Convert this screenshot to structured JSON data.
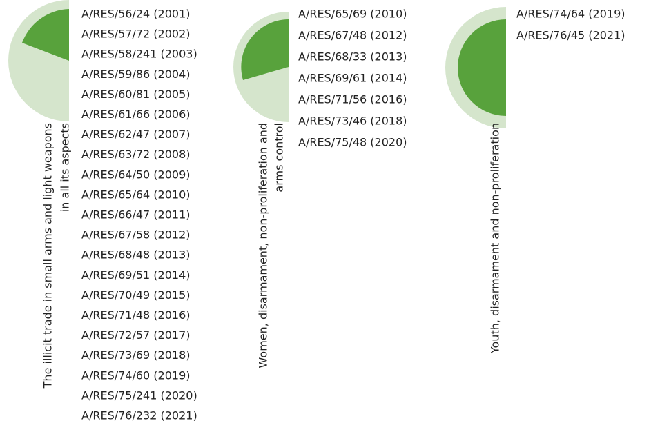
{
  "groups": [
    {
      "label": [
        "The illicit trade in small arms and light weapons",
        "in all its aspects"
      ],
      "resolutions": [
        "A/RES/56/24 (2001)",
        "A/RES/57/72 (2002)",
        "A/RES/58/241 (2003)",
        "A/RES/59/86 (2004)",
        "A/RES/60/81 (2005)",
        "A/RES/61/66 (2006)",
        "A/RES/62/47 (2007)",
        "A/RES/63/72 (2008)",
        "A/RES/64/50 (2009)",
        "A/RES/65/64 (2010)",
        "A/RES/66/47 (2011)",
        "A/RES/67/58 (2012)",
        "A/RES/68/48 (2013)",
        "A/RES/69/51 (2014)",
        "A/RES/70/49 (2015)",
        "A/RES/71/48 (2016)",
        "A/RES/72/57 (2017)",
        "A/RES/73/69 (2018)",
        "A/RES/74/60 (2019)",
        "A/RES/75/241 (2020)",
        "A/RES/76/232 (2021)"
      ]
    },
    {
      "label": [
        "Women, disarmament, non-proliferation and",
        "arms control"
      ],
      "resolutions": [
        "A/RES/65/69 (2010)",
        "A/RES/67/48 (2012)",
        "A/RES/68/33 (2013)",
        "A/RES/69/61 (2014)",
        "A/RES/71/56 (2016)",
        "A/RES/73/46 (2018)",
        "A/RES/75/48 (2020)"
      ]
    },
    {
      "label": [
        "Youth, disarmament and non-proliferation"
      ],
      "resolutions": [
        "A/RES/74/64 (2019)",
        "A/RES/76/45 (2021)"
      ]
    }
  ]
}
